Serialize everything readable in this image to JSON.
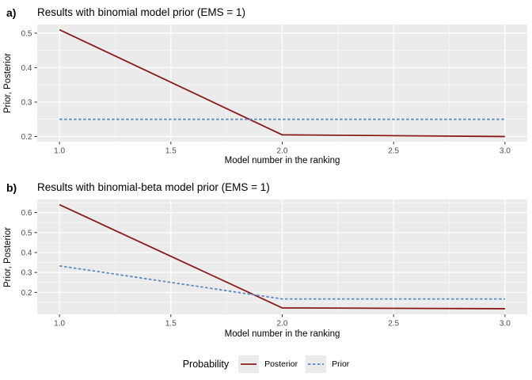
{
  "chart_data": [
    {
      "type": "line",
      "panel_label": "a)",
      "title": "Results with binomial model prior (EMS = 1)",
      "xlabel": "Model number in the ranking",
      "ylabel": "Prior, Posterior",
      "x": [
        1,
        2,
        3
      ],
      "series": [
        {
          "name": "Posterior",
          "values": [
            0.51,
            0.205,
            0.2
          ],
          "color": "#8B1A1A",
          "dash": "solid"
        },
        {
          "name": "Prior",
          "values": [
            0.25,
            0.25,
            0.25
          ],
          "color": "#5B8BC4",
          "dash": "dashed"
        }
      ],
      "xlim": [
        0.9,
        3.1
      ],
      "ylim": [
        0.185,
        0.525
      ],
      "x_ticks": [
        1,
        1.5,
        2,
        2.5,
        3
      ],
      "x_tick_labels": [
        "1.0",
        "1.5",
        "2.0",
        "2.5",
        "3.0"
      ],
      "x_minor": [
        1.25,
        1.75,
        2.25,
        2.75
      ],
      "y_ticks": [
        0.2,
        0.3,
        0.4,
        0.5
      ],
      "y_tick_labels": [
        "0.2",
        "0.3",
        "0.4",
        "0.5"
      ],
      "y_minor": [
        0.25,
        0.35,
        0.45
      ],
      "grid": true,
      "legend_position": "shared-bottom"
    },
    {
      "type": "line",
      "panel_label": "b)",
      "title": "Results with binomial-beta model prior (EMS = 1)",
      "xlabel": "Model number in the ranking",
      "ylabel": "Prior, Posterior",
      "x": [
        1,
        2,
        3
      ],
      "series": [
        {
          "name": "Posterior",
          "values": [
            0.64,
            0.122,
            0.118
          ],
          "color": "#8B1A1A",
          "dash": "solid"
        },
        {
          "name": "Prior",
          "values": [
            0.333,
            0.167,
            0.167
          ],
          "color": "#5B8BC4",
          "dash": "dashed"
        }
      ],
      "xlim": [
        0.9,
        3.1
      ],
      "ylim": [
        0.09,
        0.666
      ],
      "x_ticks": [
        1,
        1.5,
        2,
        2.5,
        3
      ],
      "x_tick_labels": [
        "1.0",
        "1.5",
        "2.0",
        "2.5",
        "3.0"
      ],
      "x_minor": [
        1.25,
        1.75,
        2.25,
        2.75
      ],
      "y_ticks": [
        0.2,
        0.3,
        0.4,
        0.5,
        0.6
      ],
      "y_tick_labels": [
        "0.2",
        "0.3",
        "0.4",
        "0.5",
        "0.6"
      ],
      "y_minor": [
        0.15,
        0.25,
        0.35,
        0.45,
        0.55,
        0.65
      ],
      "grid": true,
      "legend_position": "shared-bottom"
    }
  ],
  "legend": {
    "title": "Probability",
    "items": [
      {
        "label": "Posterior",
        "color": "#8B1A1A",
        "dash": "solid"
      },
      {
        "label": "Prior",
        "color": "#5B8BC4",
        "dash": "dashed"
      }
    ]
  },
  "colors": {
    "panel_bg": "#EBEBEB",
    "grid_major": "#FFFFFF",
    "grid_minor": "#FFFFFF",
    "tick_text": "#4D4D4D",
    "tick_mark": "#333333"
  }
}
